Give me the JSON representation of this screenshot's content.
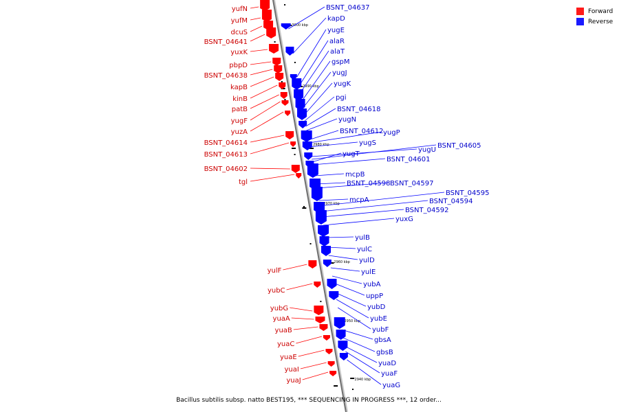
{
  "colors": {
    "forward": "#ff0000",
    "reverse": "#0000ff",
    "backbone": "#808080",
    "tick": "#000000"
  },
  "legend": [
    {
      "label": "Forward",
      "color": "#ff1a1a"
    },
    {
      "label": "Reverse",
      "color": "#1a1aff"
    }
  ],
  "scale_labels": [
    "3000 kbp",
    "2990 kbp",
    "2980 kbp",
    "2970 kbp",
    "2960 kbp",
    "2950 kbp",
    "2940 kbp"
  ],
  "forward_genes": [
    "yufN",
    "yufM",
    "dcuS",
    "BSNT_04641",
    "yuxK",
    "pbpD",
    "BSNT_04638",
    "kapB",
    "kinB",
    "patB",
    "yugF",
    "yuzA",
    "BSNT_04614",
    "BSNT_04613",
    "BSNT_04602",
    "tgl",
    "yulF",
    "yubC",
    "yubG",
    "yuaA",
    "yuaB",
    "yuaC",
    "yuaE",
    "yuaI",
    "yuaJ"
  ],
  "reverse_genes": [
    "BSNT_04637",
    "kapD",
    "yugE",
    "alaR",
    "alaT",
    "gspM",
    "yugJ",
    "yugK",
    "pgi",
    "BSNT_04618",
    "yugN",
    "BSNT_04612",
    "yugP",
    "yugS",
    "yugU",
    "BSNT_04605",
    "yugT",
    "BSNT_04601",
    "mcpB",
    "BSNT_04598",
    "BSNT_04597",
    "mcpA",
    "BSNT_04595",
    "BSNT_04594",
    "BSNT_04592",
    "yuxG",
    "yulB",
    "yulC",
    "yulD",
    "yulE",
    "yubA",
    "uppP",
    "yubD",
    "yubE",
    "yubF",
    "gbsA",
    "gbsB",
    "yuaD",
    "yuaF",
    "yuaG"
  ],
  "caption": "Bacillus subtilis subsp. natto BEST195, *** SEQUENCING IN PROGRESS ***, 12 order..."
}
